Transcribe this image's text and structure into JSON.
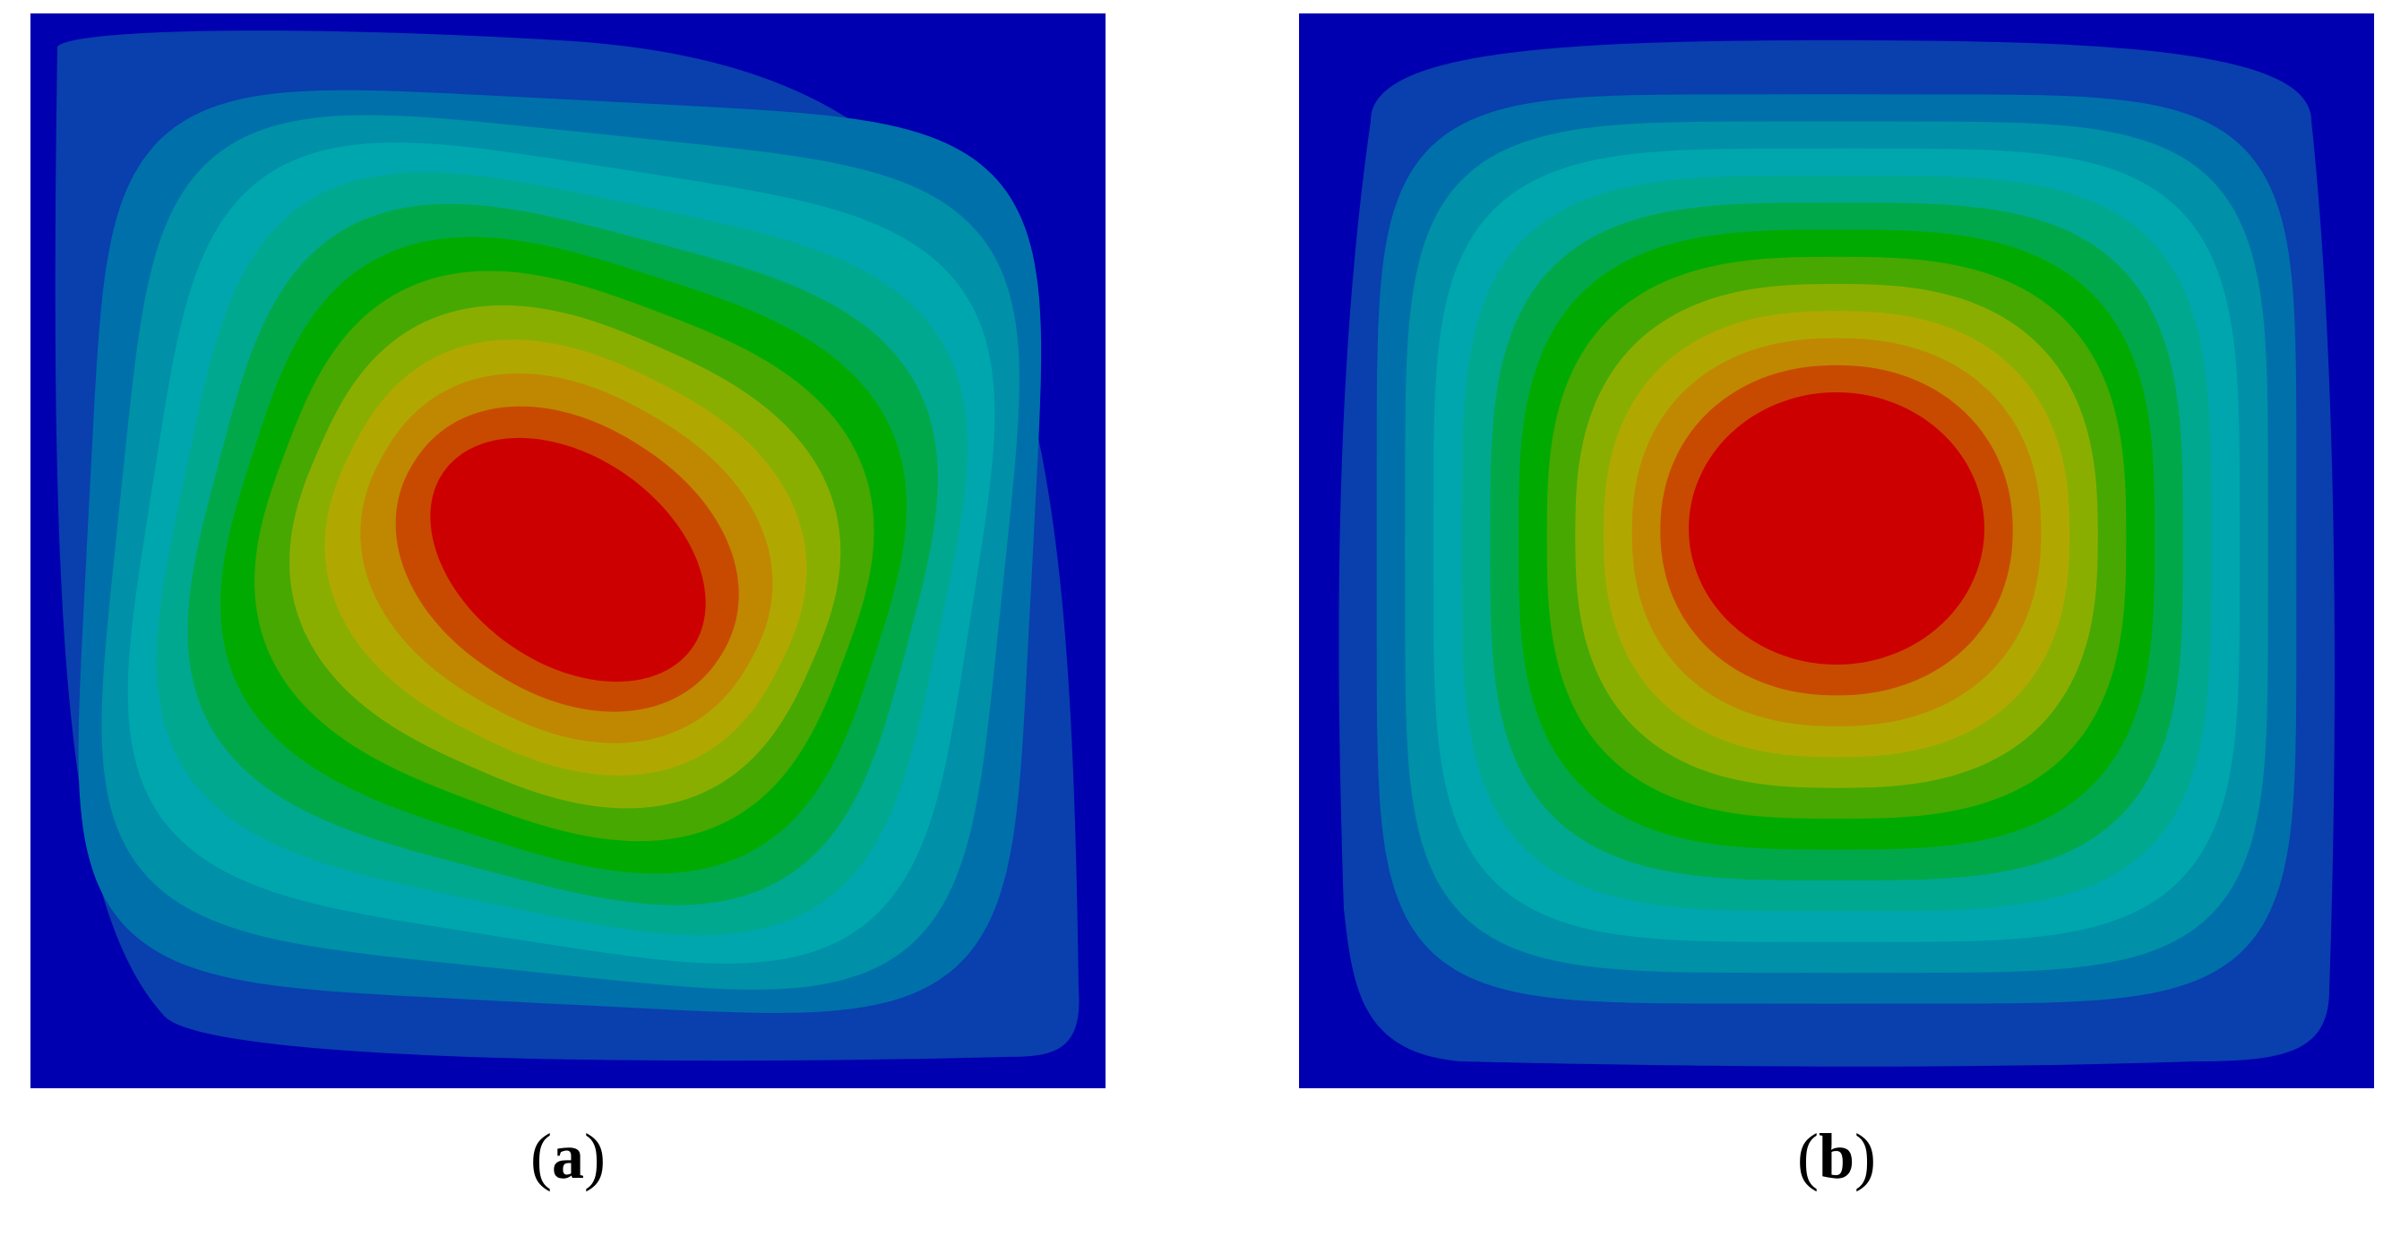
{
  "figure": {
    "panels": [
      {
        "id": "a",
        "letter": "a",
        "field_shape": "ellipse tilted along the top-left to bottom-right diagonal, centered right of the panel middle"
      },
      {
        "id": "b",
        "letter": "b",
        "field_shape": "near-circular, centered slightly above the panel middle"
      }
    ],
    "label_open": "(",
    "label_close": ")",
    "contour_colors": [
      "#0000b0",
      "#0a3fae",
      "#0070aa",
      "#0090a8",
      "#00a6ae",
      "#00a890",
      "#00a84a",
      "#00aa00",
      "#46a800",
      "#8aae00",
      "#b0a800",
      "#c08800",
      "#c84a00",
      "#cc0000"
    ]
  }
}
